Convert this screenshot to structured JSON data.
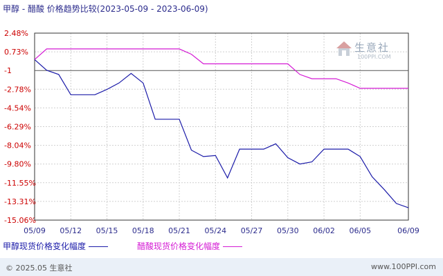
{
  "title": "甲醇 - 醋酸 价格趋势比较(2023-05-09 - 2023-06-09)",
  "watermark": {
    "text": "生意社",
    "sub": "100PPI.COM"
  },
  "footer": {
    "copyright": "© 2025.05 生意社",
    "site": "www.100PPI.com"
  },
  "colors": {
    "methanol": "#1a1aa8",
    "acetic": "#d41ad4",
    "axis": "#333333",
    "grid": "#cfcfcf",
    "ytick": "#cc0000",
    "xtick": "#2b2b8c"
  },
  "chart_data": {
    "type": "line",
    "x_ticks": [
      "05/09",
      "05/12",
      "05/15",
      "05/18",
      "05/21",
      "05/24",
      "05/27",
      "05/30",
      "06/02",
      "06/05",
      "06/09"
    ],
    "y_ticks": [
      "2.48%",
      "0.73%",
      "-1",
      "-2.78%",
      "-4.54%",
      "-6.29%",
      "-8.04%",
      "-9.80%",
      "-11.55%",
      "-13.31%",
      "-15.06%"
    ],
    "ylim": [
      -15.06,
      2.48
    ],
    "xlim": [
      "05/09",
      "06/09"
    ],
    "grid": true,
    "legend_position": "bottom",
    "series": [
      {
        "name": "甲醇现货价格变化幅度",
        "color": "#1a1aa8",
        "x": [
          "05/09",
          "05/10",
          "05/11",
          "05/12",
          "05/13",
          "05/14",
          "05/15",
          "05/16",
          "05/17",
          "05/18",
          "05/19",
          "05/20",
          "05/21",
          "05/22",
          "05/23",
          "05/24",
          "05/25",
          "05/26",
          "05/27",
          "05/28",
          "05/29",
          "05/30",
          "05/31",
          "06/01",
          "06/02",
          "06/03",
          "06/04",
          "06/05",
          "06/06",
          "06/07",
          "06/08",
          "06/09"
        ],
        "values": [
          0.0,
          -1.0,
          -1.4,
          -3.3,
          -3.3,
          -3.3,
          -2.8,
          -2.2,
          -1.3,
          -2.2,
          -5.6,
          -5.6,
          -5.6,
          -8.5,
          -9.1,
          -9.0,
          -11.1,
          -8.4,
          -8.4,
          -8.4,
          -7.9,
          -9.2,
          -9.8,
          -9.6,
          -8.4,
          -8.4,
          -8.4,
          -9.1,
          -11.0,
          -12.2,
          -13.5,
          -13.9
        ]
      },
      {
        "name": "醋酸现货价格变化幅度",
        "color": "#d41ad4",
        "x": [
          "05/09",
          "05/10",
          "05/11",
          "05/12",
          "05/13",
          "05/14",
          "05/15",
          "05/16",
          "05/17",
          "05/18",
          "05/19",
          "05/20",
          "05/21",
          "05/22",
          "05/23",
          "05/24",
          "05/25",
          "05/26",
          "05/27",
          "05/28",
          "05/29",
          "05/30",
          "05/31",
          "06/01",
          "06/02",
          "06/03",
          "06/04",
          "06/05",
          "06/06",
          "06/07",
          "06/08",
          "06/09"
        ],
        "values": [
          0.0,
          1.0,
          1.0,
          1.0,
          1.0,
          1.0,
          1.0,
          1.0,
          1.0,
          1.0,
          1.0,
          1.0,
          1.0,
          0.5,
          -0.4,
          -0.4,
          -0.4,
          -0.4,
          -0.4,
          -0.4,
          -0.4,
          -0.4,
          -1.4,
          -1.8,
          -1.8,
          -1.8,
          -2.2,
          -2.7,
          -2.7,
          -2.7,
          -2.7,
          -2.7
        ]
      }
    ]
  }
}
